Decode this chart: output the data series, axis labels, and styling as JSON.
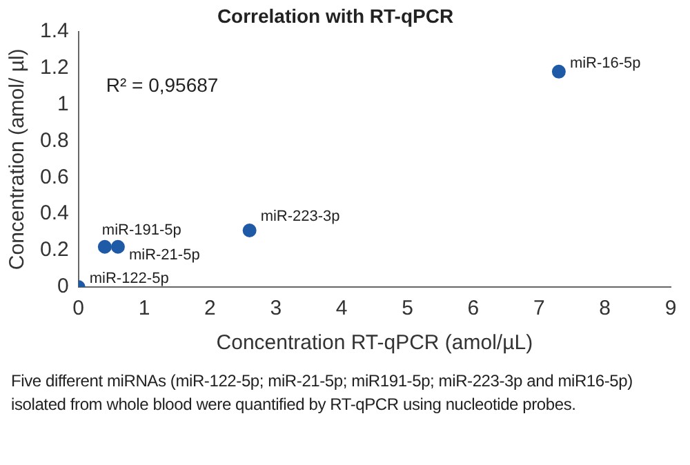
{
  "chart_data": {
    "type": "scatter",
    "title": "Correlation with RT-qPCR",
    "xlabel": "Concentration RT-qPCR (amol/µL)",
    "ylabel": "Concentration (amol/ µl)",
    "x": [
      0,
      0.4,
      0.6,
      2.6,
      7.3
    ],
    "values": [
      0,
      0.22,
      0.22,
      0.31,
      1.18
    ],
    "color": "#1f5aa6",
    "marker": "circle",
    "xlim": [
      0,
      9
    ],
    "xticks": [
      0,
      1,
      2,
      3,
      4,
      5,
      6,
      7,
      8,
      9
    ],
    "ylim": [
      0,
      1.4
    ],
    "yticks": [
      0,
      0.2,
      0.4,
      0.6,
      0.8,
      1,
      1.2,
      1.4
    ],
    "grid": false,
    "annotations": [
      {
        "text": "miR-122-5p",
        "x": 0,
        "y": 0
      },
      {
        "text": "miR-191-5p",
        "x": 0.4,
        "y": 0.22
      },
      {
        "text": "miR-21-5p",
        "x": 0.6,
        "y": 0.22
      },
      {
        "text": "miR-223-3p",
        "x": 2.6,
        "y": 0.31
      },
      {
        "text": "miR-16-5p",
        "x": 7.3,
        "y": 1.18
      },
      "R² = 0,95687",
      "Five different miRNAs (miR-122-5p; miR-21-5p; miR191-5p; miR-223-3p and miR16-5p) isolated from whole blood were quantified by RT-qPCR using nucleotide probes."
    ]
  }
}
